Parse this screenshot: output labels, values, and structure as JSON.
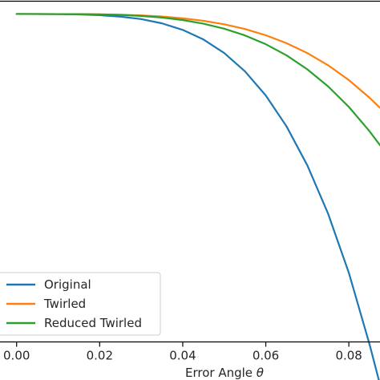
{
  "chart_data": {
    "type": "line",
    "xlabel": "Error Angle θ",
    "xlabel_prefix": "Error Angle ",
    "xlabel_symbol": "θ",
    "xlim": [
      -0.004,
      0.0875
    ],
    "ylim": [
      0.6,
      1.0
    ],
    "xticks": [
      "0.00",
      "0.02",
      "0.04",
      "0.06",
      "0.08"
    ],
    "xtick_values": [
      0.0,
      0.02,
      0.04,
      0.06,
      0.08
    ],
    "grid": false,
    "legend_position": "lower-left",
    "series": [
      {
        "name": "Original",
        "color": "#1f77b4",
        "x": [
          0,
          0.005,
          0.01,
          0.015,
          0.02,
          0.025,
          0.03,
          0.035,
          0.04,
          0.045,
          0.05,
          0.055,
          0.06,
          0.065,
          0.07,
          0.075,
          0.08,
          0.085,
          0.0875
        ],
        "y": [
          0.985,
          0.9849,
          0.9848,
          0.9844,
          0.9836,
          0.9819,
          0.979,
          0.974,
          0.9663,
          0.955,
          0.9391,
          0.9176,
          0.8893,
          0.853,
          0.8073,
          0.7506,
          0.6811,
          0.5969,
          0.55
        ]
      },
      {
        "name": "Twirled",
        "color": "#ff7f0e",
        "x": [
          0,
          0.005,
          0.01,
          0.015,
          0.02,
          0.025,
          0.03,
          0.035,
          0.04,
          0.045,
          0.05,
          0.055,
          0.06,
          0.065,
          0.07,
          0.075,
          0.08,
          0.085,
          0.0875
        ],
        "y": [
          0.985,
          0.985,
          0.9849,
          0.9848,
          0.9846,
          0.9841,
          0.9833,
          0.982,
          0.9799,
          0.977,
          0.9729,
          0.9673,
          0.96,
          0.9507,
          0.9391,
          0.9248,
          0.9074,
          0.8866,
          0.8748
        ]
      },
      {
        "name": "Reduced Twirled",
        "color": "#2ca02c",
        "x": [
          0,
          0.005,
          0.01,
          0.015,
          0.02,
          0.025,
          0.03,
          0.035,
          0.04,
          0.045,
          0.05,
          0.055,
          0.06,
          0.065,
          0.07,
          0.075,
          0.08,
          0.085,
          0.0875
        ],
        "y": [
          0.985,
          0.985,
          0.9849,
          0.9848,
          0.9845,
          0.9839,
          0.9827,
          0.9808,
          0.9779,
          0.9736,
          0.9677,
          0.9598,
          0.9495,
          0.9364,
          0.92,
          0.9,
          0.8759,
          0.8472,
          0.831
        ]
      }
    ]
  }
}
